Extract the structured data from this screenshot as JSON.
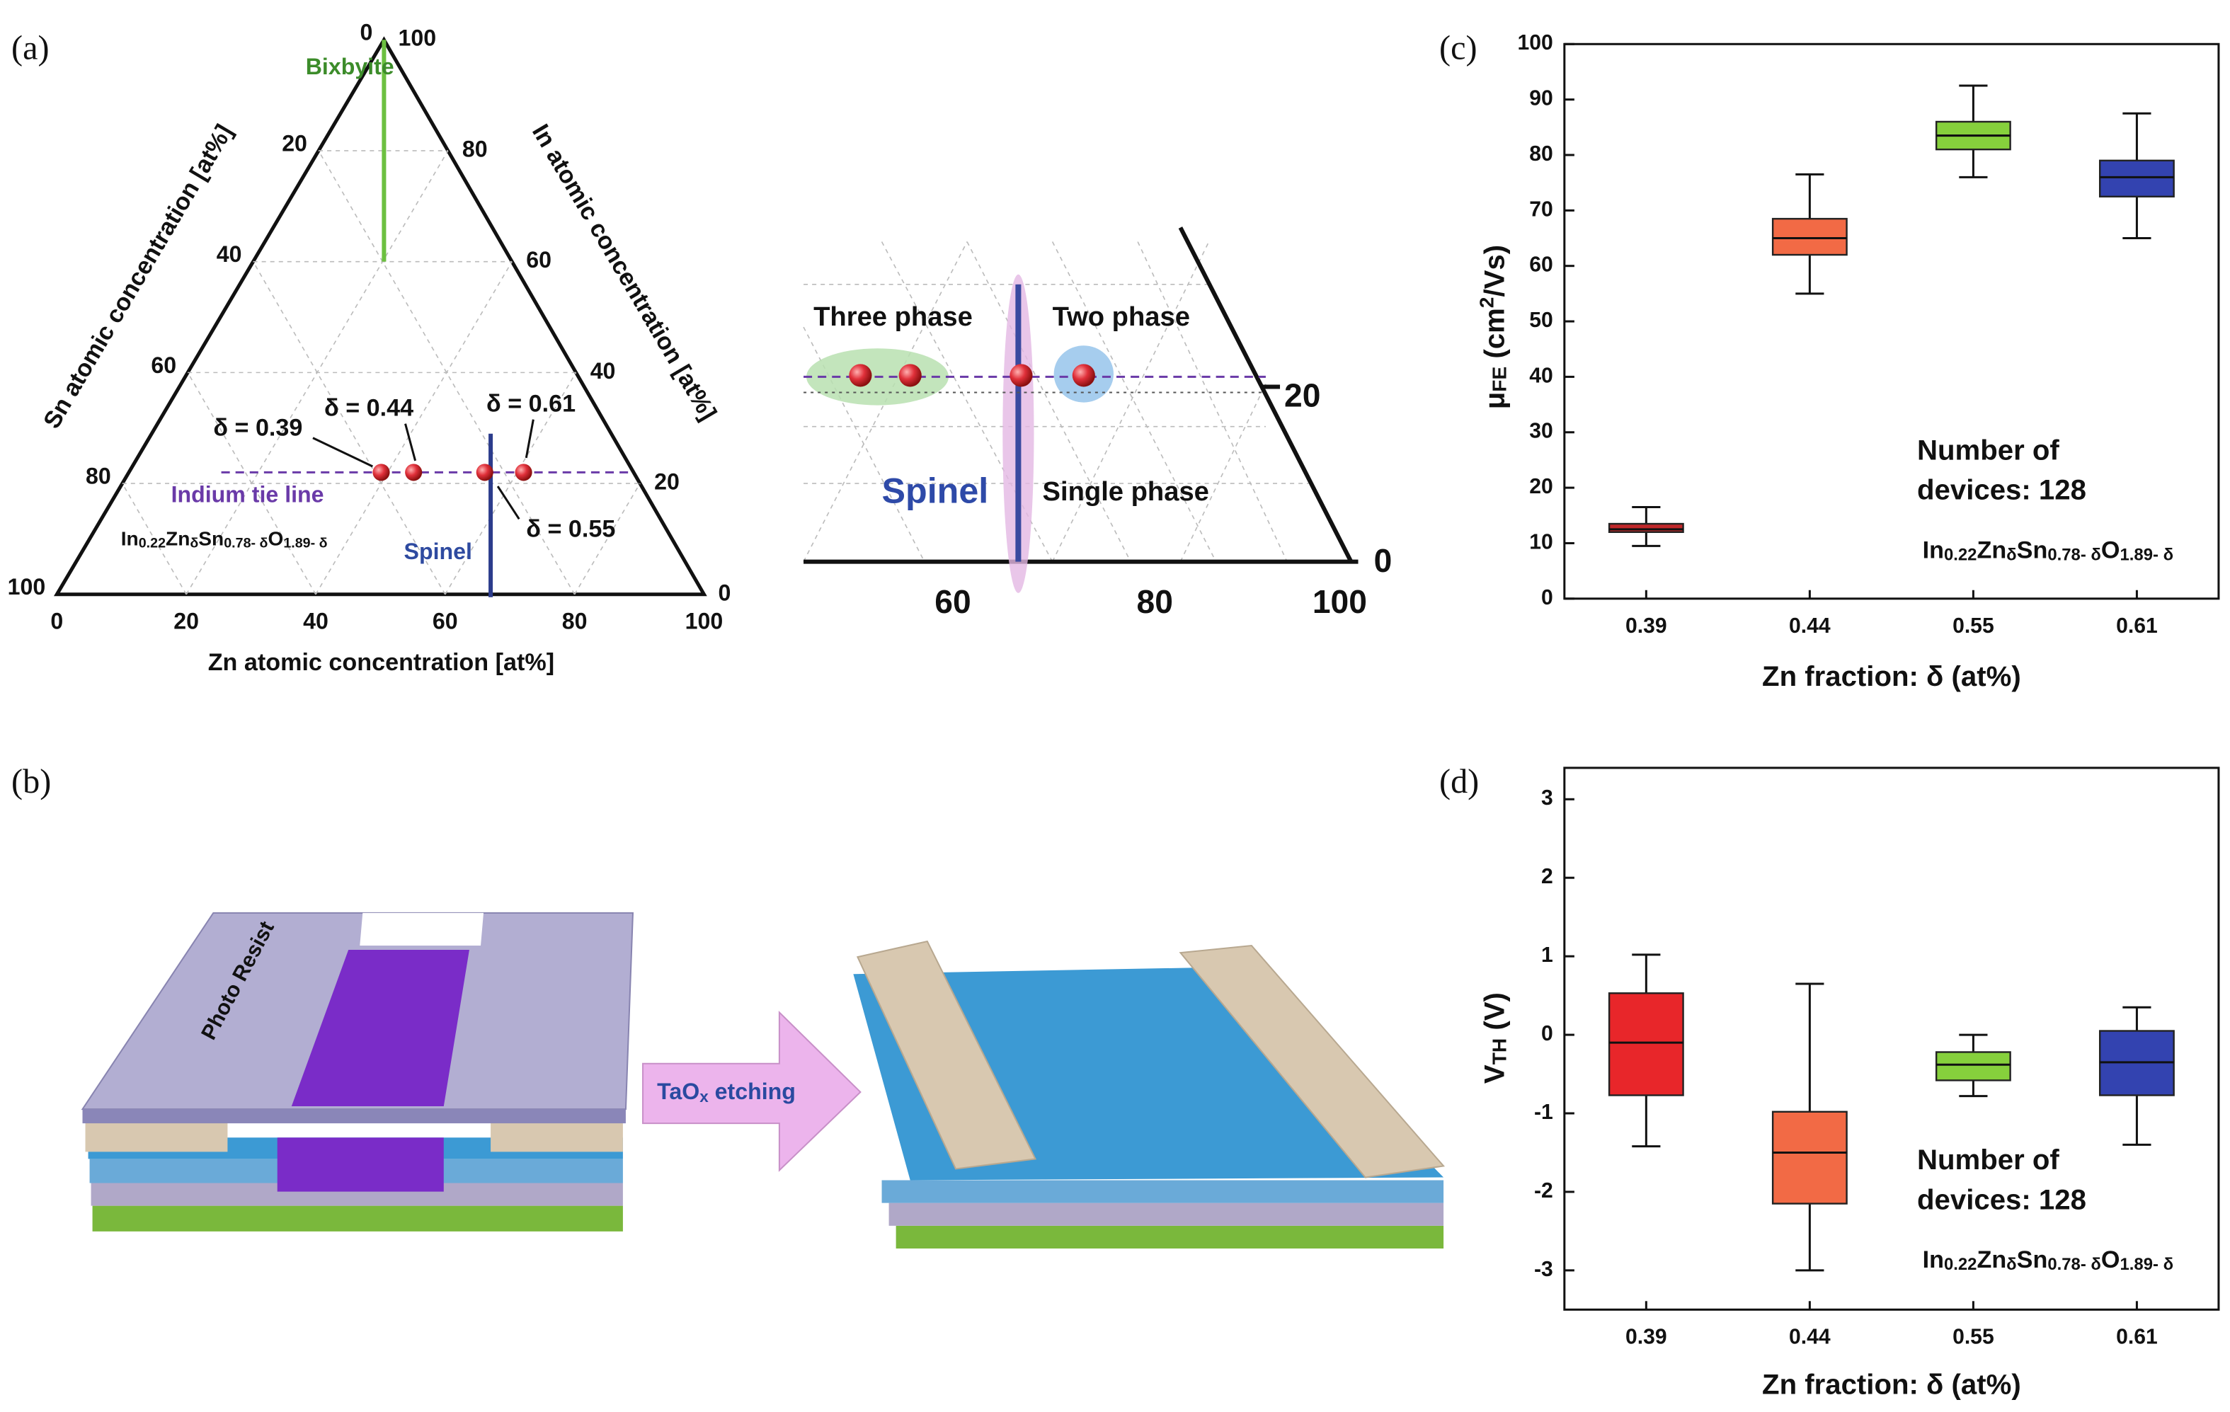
{
  "panel_labels": [
    "(a)",
    "(b)",
    "(c)",
    "(d)"
  ],
  "ternary": {
    "zn_label": "Zn atomic concentration [at%]",
    "sn_label": "Sn atomic concentration [at%]",
    "in_label": "In atomic concentration [at%]",
    "zn_ticks": [
      0,
      20,
      40,
      60,
      80,
      100
    ],
    "sn_ticks": [
      0,
      20,
      40,
      60,
      80,
      100
    ],
    "in_ticks": [
      0,
      20,
      40,
      60,
      80,
      100
    ],
    "phases": [
      "Bixbyite",
      "Spinel"
    ],
    "tie_line": {
      "label": "Indium tie line",
      "in": 22
    },
    "formula": [
      {
        "text": "In"
      },
      {
        "sub": "0.22"
      },
      {
        "text": "Zn"
      },
      {
        "sub": "δ"
      },
      {
        "text": "Sn"
      },
      {
        "sub": "0.78- δ"
      },
      {
        "text": "O"
      },
      {
        "sub": "1.89- δ"
      }
    ],
    "points": {
      "zn": [
        39,
        44,
        55,
        61
      ],
      "labels": [
        "δ = 0.39",
        "δ = 0.44",
        "δ = 0.55",
        "δ = 0.61"
      ]
    }
  },
  "inset": {
    "labels": [
      "Three phase",
      "Two phase",
      "Spinel",
      "Single phase"
    ],
    "x_ticks": [
      60,
      80,
      100
    ],
    "y_ticks": [
      20,
      0
    ]
  },
  "process": {
    "photo_resist": "Photo Resist",
    "etching": [
      {
        "text": "TaO"
      },
      {
        "sub": "x"
      },
      {
        "text": " etching"
      }
    ]
  },
  "chart_data": [
    {
      "type": "box",
      "x_label": "Zn fraction: δ (at%)",
      "y_label": [
        {
          "text": "μ"
        },
        {
          "sub": "FE"
        },
        {
          "text": " (cm"
        },
        {
          "sup": "2"
        },
        {
          "text": "/Vs)"
        }
      ],
      "categories": [
        "0.39",
        "0.44",
        "0.55",
        "0.61"
      ],
      "colors": [
        "#c0282a",
        "#f26a45",
        "#86d03c",
        "#3343b0"
      ],
      "boxes": [
        {
          "whisker_low": 9.5,
          "q1": 12,
          "median": 12.5,
          "q3": 13.5,
          "whisker_high": 16.5
        },
        {
          "whisker_low": 55,
          "q1": 62,
          "median": 65,
          "q3": 68.5,
          "whisker_high": 76.5
        },
        {
          "whisker_low": 76,
          "q1": 81,
          "median": 83.5,
          "q3": 86,
          "whisker_high": 92.5
        },
        {
          "whisker_low": 65,
          "q1": 72.5,
          "median": 76,
          "q3": 79,
          "whisker_high": 87.5
        }
      ],
      "ylim": [
        0,
        100
      ],
      "yticks": [
        0,
        10,
        20,
        30,
        40,
        50,
        60,
        70,
        80,
        90,
        100
      ],
      "annotation": [
        "Number of",
        "devices: 128"
      ],
      "formula": [
        {
          "text": "In"
        },
        {
          "sub": "0.22"
        },
        {
          "text": "Zn"
        },
        {
          "sub": "δ"
        },
        {
          "text": "Sn"
        },
        {
          "sub": "0.78- δ"
        },
        {
          "text": "O"
        },
        {
          "sub": "1.89- δ"
        }
      ]
    },
    {
      "type": "box",
      "x_label": "Zn fraction: δ (at%)",
      "y_label": [
        {
          "text": "V"
        },
        {
          "sub": "TH"
        },
        {
          "text": " (V)"
        }
      ],
      "categories": [
        "0.39",
        "0.44",
        "0.55",
        "0.61"
      ],
      "colors": [
        "#e8262a",
        "#f26a45",
        "#86d03c",
        "#3343b0"
      ],
      "boxes": [
        {
          "whisker_low": -1.42,
          "q1": -0.77,
          "median": -0.1,
          "q3": 0.53,
          "whisker_high": 1.02
        },
        {
          "whisker_low": -3.0,
          "q1": -2.15,
          "median": -1.5,
          "q3": -0.98,
          "whisker_high": 0.65
        },
        {
          "whisker_low": -0.78,
          "q1": -0.58,
          "median": -0.38,
          "q3": -0.22,
          "whisker_high": 0.0
        },
        {
          "whisker_low": -1.4,
          "q1": -0.77,
          "median": -0.35,
          "q3": 0.05,
          "whisker_high": 0.35
        }
      ],
      "ylim": [
        -3.5,
        3.4
      ],
      "yticks": [
        -3,
        -2,
        -1,
        0,
        1,
        2,
        3
      ],
      "annotation": [
        "Number of",
        "devices: 128"
      ],
      "formula": [
        {
          "text": "In"
        },
        {
          "sub": "0.22"
        },
        {
          "text": "Zn"
        },
        {
          "sub": "δ"
        },
        {
          "text": "Sn"
        },
        {
          "sub": "0.78- δ"
        },
        {
          "text": "O"
        },
        {
          "sub": "1.89- δ"
        }
      ]
    }
  ]
}
